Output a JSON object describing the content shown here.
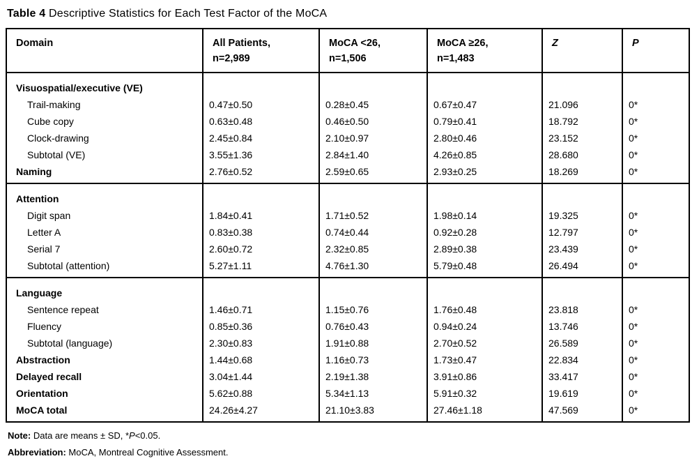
{
  "title": {
    "label": "Table 4",
    "text": "Descriptive Statistics for Each Test Factor of the MoCA"
  },
  "colors": {
    "text": "#000000",
    "border": "#000000",
    "background": "#ffffff"
  },
  "table": {
    "columns": [
      {
        "label": "Domain",
        "sub": "",
        "italic": false
      },
      {
        "label": "All Patients,",
        "sub": "n=2,989",
        "italic": false
      },
      {
        "label": "MoCA <26,",
        "sub": "n=1,506",
        "italic": false
      },
      {
        "label": "MoCA ≥26,",
        "sub": "n=1,483",
        "italic": false
      },
      {
        "label": "Z",
        "sub": "",
        "italic": true
      },
      {
        "label": "P",
        "sub": "",
        "italic": true
      }
    ],
    "sections": [
      {
        "rows": [
          {
            "domain": "Visuospatial/executive (VE)",
            "bold": true,
            "indent": false,
            "group": true,
            "values": [
              "",
              "",
              "",
              "",
              ""
            ]
          },
          {
            "domain": "Trail-making",
            "bold": false,
            "indent": true,
            "group": false,
            "values": [
              "0.47±0.50",
              "0.28±0.45",
              "0.67±0.47",
              "21.096",
              "0*"
            ]
          },
          {
            "domain": "Cube copy",
            "bold": false,
            "indent": true,
            "group": false,
            "values": [
              "0.63±0.48",
              "0.46±0.50",
              "0.79±0.41",
              "18.792",
              "0*"
            ]
          },
          {
            "domain": "Clock-drawing",
            "bold": false,
            "indent": true,
            "group": false,
            "values": [
              "2.45±0.84",
              "2.10±0.97",
              "2.80±0.46",
              "23.152",
              "0*"
            ]
          },
          {
            "domain": "Subtotal (VE)",
            "bold": false,
            "indent": true,
            "group": false,
            "values": [
              "3.55±1.36",
              "2.84±1.40",
              "4.26±0.85",
              "28.680",
              "0*"
            ]
          },
          {
            "domain": "Naming",
            "bold": true,
            "indent": false,
            "group": false,
            "values": [
              "2.76±0.52",
              "2.59±0.65",
              "2.93±0.25",
              "18.269",
              "0*"
            ]
          }
        ]
      },
      {
        "rows": [
          {
            "domain": "Attention",
            "bold": true,
            "indent": false,
            "group": true,
            "values": [
              "",
              "",
              "",
              "",
              ""
            ]
          },
          {
            "domain": "Digit span",
            "bold": false,
            "indent": true,
            "group": false,
            "values": [
              "1.84±0.41",
              "1.71±0.52",
              "1.98±0.14",
              "19.325",
              "0*"
            ]
          },
          {
            "domain": "Letter A",
            "bold": false,
            "indent": true,
            "group": false,
            "values": [
              "0.83±0.38",
              "0.74±0.44",
              "0.92±0.28",
              "12.797",
              "0*"
            ]
          },
          {
            "domain": "Serial 7",
            "bold": false,
            "indent": true,
            "group": false,
            "values": [
              "2.60±0.72",
              "2.32±0.85",
              "2.89±0.38",
              "23.439",
              "0*"
            ]
          },
          {
            "domain": "Subtotal (attention)",
            "bold": false,
            "indent": true,
            "group": false,
            "values": [
              "5.27±1.11",
              "4.76±1.30",
              "5.79±0.48",
              "26.494",
              "0*"
            ]
          }
        ]
      },
      {
        "rows": [
          {
            "domain": "Language",
            "bold": true,
            "indent": false,
            "group": true,
            "values": [
              "",
              "",
              "",
              "",
              ""
            ]
          },
          {
            "domain": "Sentence repeat",
            "bold": false,
            "indent": true,
            "group": false,
            "values": [
              "1.46±0.71",
              "1.15±0.76",
              "1.76±0.48",
              "23.818",
              "0*"
            ]
          },
          {
            "domain": "Fluency",
            "bold": false,
            "indent": true,
            "group": false,
            "values": [
              "0.85±0.36",
              "0.76±0.43",
              "0.94±0.24",
              "13.746",
              "0*"
            ]
          },
          {
            "domain": "Subtotal (language)",
            "bold": false,
            "indent": true,
            "group": false,
            "values": [
              "2.30±0.83",
              "1.91±0.88",
              "2.70±0.52",
              "26.589",
              "0*"
            ]
          },
          {
            "domain": "Abstraction",
            "bold": true,
            "indent": false,
            "group": false,
            "values": [
              "1.44±0.68",
              "1.16±0.73",
              "1.73±0.47",
              "22.834",
              "0*"
            ]
          },
          {
            "domain": "Delayed recall",
            "bold": true,
            "indent": false,
            "group": false,
            "values": [
              "3.04±1.44",
              "2.19±1.38",
              "3.91±0.86",
              "33.417",
              "0*"
            ]
          },
          {
            "domain": "Orientation",
            "bold": true,
            "indent": false,
            "group": false,
            "values": [
              "5.62±0.88",
              "5.34±1.13",
              "5.91±0.32",
              "19.619",
              "0*"
            ]
          },
          {
            "domain": "MoCA total",
            "bold": true,
            "indent": false,
            "group": false,
            "values": [
              "24.26±4.27",
              "21.10±3.83",
              "27.46±1.18",
              "47.569",
              "0*"
            ]
          }
        ]
      }
    ]
  },
  "footnotes": {
    "note_label": "Note:",
    "note_text_1": "Data are means ± SD, *",
    "note_p": "P",
    "note_text_2": "<0.05.",
    "abbr_label": "Abbreviation:",
    "abbr_text": "MoCA, Montreal Cognitive Assessment."
  }
}
